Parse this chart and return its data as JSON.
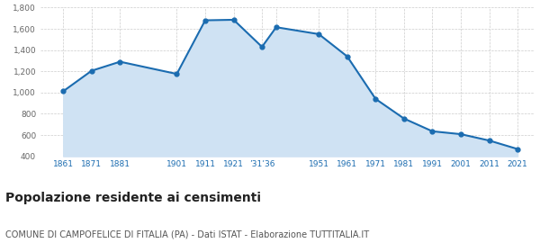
{
  "years": [
    1861,
    1871,
    1881,
    1901,
    1911,
    1921,
    1931,
    1936,
    1951,
    1961,
    1971,
    1981,
    1991,
    2001,
    2011,
    2021
  ],
  "population": [
    1012,
    1205,
    1290,
    1175,
    1680,
    1685,
    1430,
    1615,
    1550,
    1340,
    940,
    755,
    635,
    608,
    548,
    468
  ],
  "line_color": "#1b6cb0",
  "fill_color": "#cfe2f3",
  "marker_color": "#1b6cb0",
  "grid_color": "#cccccc",
  "bg_color": "#ffffff",
  "title": "Popolazione residente ai censimenti",
  "subtitle": "COMUNE DI CAMPOFELICE DI FITALIA (PA) - Dati ISTAT - Elaborazione TUTTITALIA.IT",
  "title_fontsize": 10,
  "subtitle_fontsize": 7,
  "tick_label_color": "#1b6cb0",
  "ytick_color": "#666666",
  "ylim": [
    400,
    1800
  ],
  "yticks": [
    400,
    600,
    800,
    1000,
    1200,
    1400,
    1600,
    1800
  ],
  "xlim_left": 1853,
  "xlim_right": 2027
}
